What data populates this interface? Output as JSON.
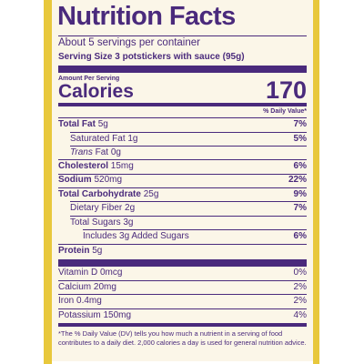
{
  "header": {
    "title": "Nutrition Facts",
    "servings": "About 5 servings per container",
    "serving_size_label": "Serving Size",
    "serving_size_value": "3 potstickers with sauce (95g)"
  },
  "calories": {
    "amount_per_serving": "Amount Per Serving",
    "label": "Calories",
    "value": "170"
  },
  "dv_header": "% Daily Value*",
  "nutrients": [
    {
      "name": "Total Fat",
      "amount": "5g",
      "dv": "7%"
    },
    {
      "name": "Saturated Fat",
      "amount": "1g",
      "dv": "5%"
    },
    {
      "name": "Trans",
      "amount": "Fat 0g"
    },
    {
      "name": "Cholesterol",
      "amount": "15mg",
      "dv": "6%"
    },
    {
      "name": "Sodium",
      "amount": "520mg",
      "dv": "22%"
    },
    {
      "name": "Total Carbohydrate",
      "amount": "25g",
      "dv": "9%"
    },
    {
      "name": "Dietary Fiber",
      "amount": "2g",
      "dv": "7%"
    },
    {
      "name": "Total Sugars",
      "amount": "3g"
    },
    {
      "name": "Includes 3g Added Sugars",
      "dv": "6%"
    },
    {
      "name": "Protein",
      "amount": "5g"
    }
  ],
  "vitamins": [
    {
      "name": "Vitamin D",
      "amount": "0mcg",
      "dv": "0%"
    },
    {
      "name": "Calcium",
      "amount": "20mg",
      "dv": "2%"
    },
    {
      "name": "Iron",
      "amount": "0.4mg",
      "dv": "2%"
    },
    {
      "name": "Potassium",
      "amount": "150mg",
      "dv": "4%"
    }
  ],
  "footnote": "*The % Daily Value (DV) tells you how much a nutrient in a serving of food contributes to a daily diet. 2,000 calories a day is used for general nutrition advice."
}
